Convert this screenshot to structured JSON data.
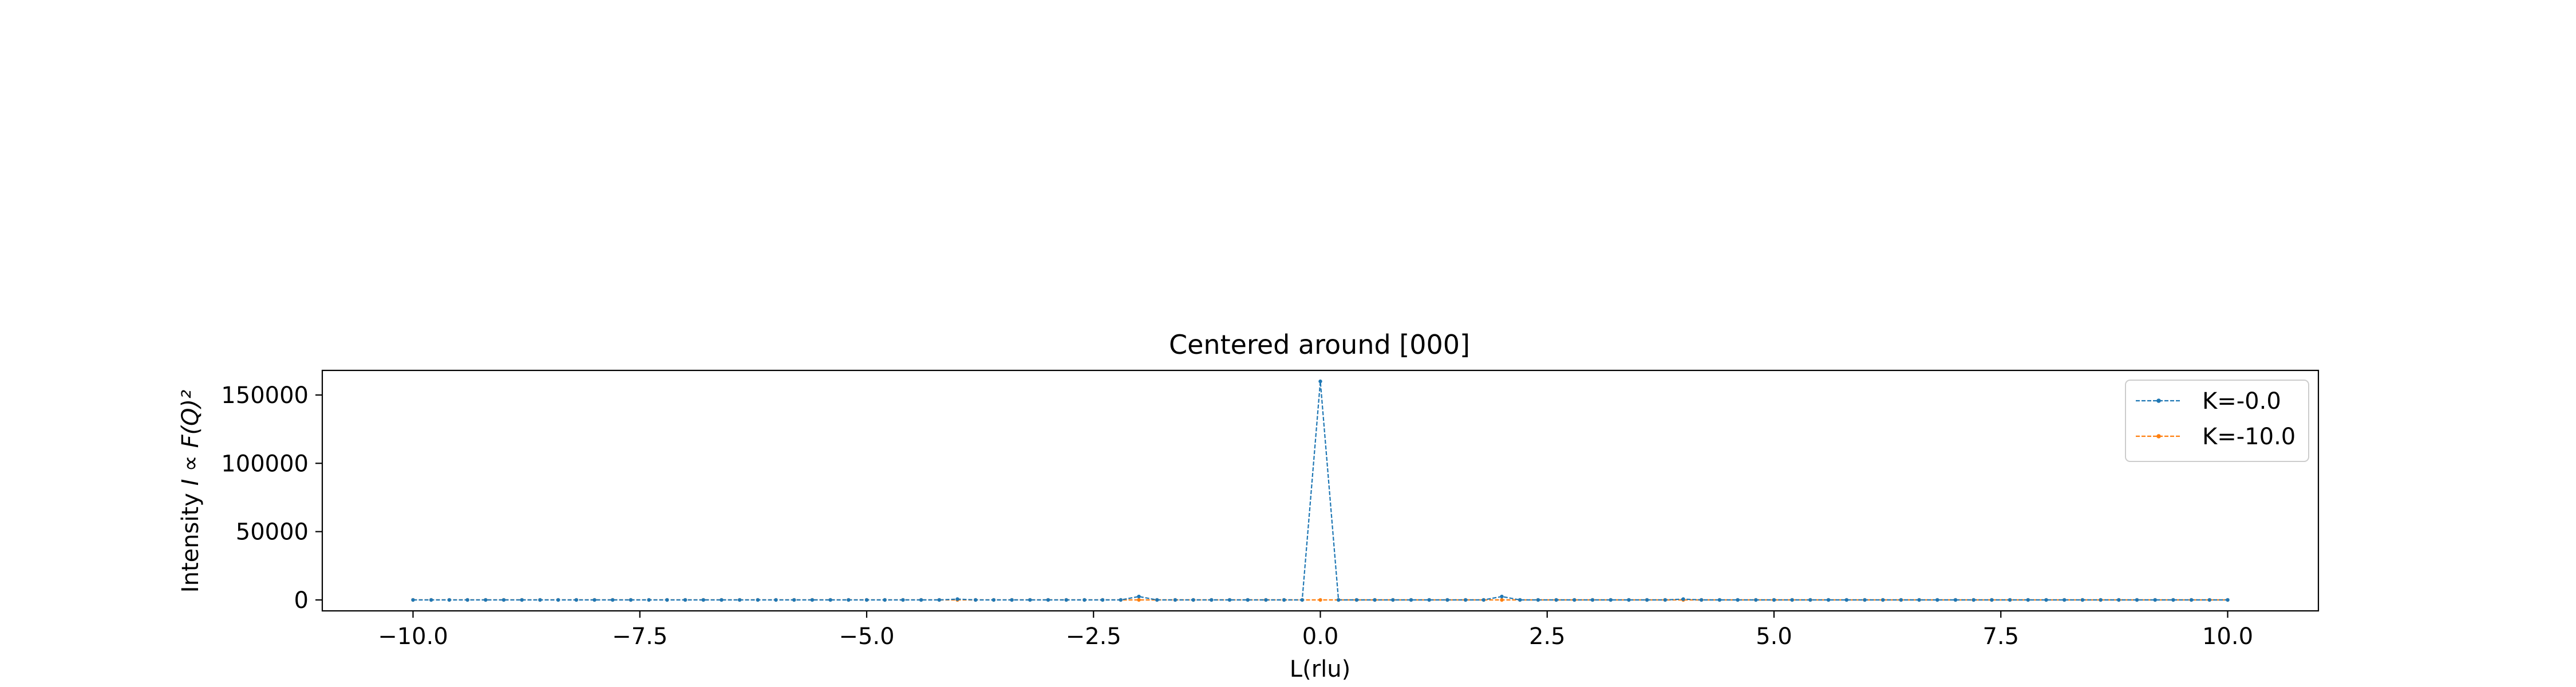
{
  "chart_data": {
    "type": "line",
    "title": "Centered around [000]",
    "xlabel": "L(rlu)",
    "ylabel_prefix": "Intensity ",
    "ylabel_math": "I ∝ F(Q)²",
    "xlim": [
      -11.0,
      11.0
    ],
    "ylim": [
      -8000,
      168000
    ],
    "xticks": [
      -10.0,
      -7.5,
      -5.0,
      -2.5,
      0.0,
      2.5,
      5.0,
      7.5,
      10.0
    ],
    "xtick_labels": [
      "−10.0",
      "−7.5",
      "−5.0",
      "−2.5",
      "0.0",
      "2.5",
      "5.0",
      "7.5",
      "10.0"
    ],
    "yticks": [
      0,
      50000,
      100000,
      150000
    ],
    "ytick_labels": [
      "0",
      "50000",
      "100000",
      "150000"
    ],
    "legend_position": "top-right",
    "series": [
      {
        "name": "K=-0.0",
        "color": "#1f77b4",
        "x_start": -10.0,
        "x_end": 10.0,
        "x_step": 0.2,
        "baseline": 0,
        "peaks": [
          {
            "x": -4.0,
            "y": 600
          },
          {
            "x": -2.0,
            "y": 2500
          },
          {
            "x": 0.0,
            "y": 160000
          },
          {
            "x": 2.0,
            "y": 2500
          },
          {
            "x": 4.0,
            "y": 600
          }
        ]
      },
      {
        "name": "K=-10.0",
        "color": "#ff7f0e",
        "x_start": -10.0,
        "x_end": 10.0,
        "x_step": 0.2,
        "baseline": 0,
        "peaks": []
      }
    ]
  }
}
